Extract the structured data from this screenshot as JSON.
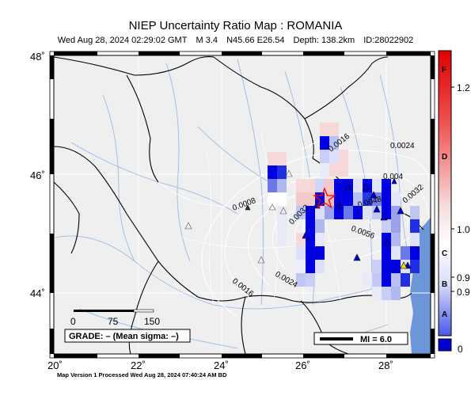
{
  "header": {
    "title": "NIEP Uncertainty Ratio Map : ROMANIA",
    "datetime": "Wed Aug 28, 2024 02:29:02 GMT",
    "magnitude": "M 3.4",
    "location": "N45.66 E26.54",
    "depth": "Depth: 138.2km",
    "event_id": "ID:28022902"
  },
  "axes": {
    "lat_labels": [
      "48˚",
      "46˚",
      "44˚"
    ],
    "lon_labels": [
      "20˚",
      "22˚",
      "24˚",
      "26˚",
      "28˚"
    ]
  },
  "contours": [
    "0.0016",
    "0.0024",
    "0.004",
    "0.0008",
    "0.0032",
    "0.0048",
    "0.0056",
    "0.0032",
    "0.0024",
    "0.0016",
    "0.0032"
  ],
  "scale_bar": {
    "labels": [
      "0",
      "75",
      "150"
    ]
  },
  "grade": "GRADE: – (Mean sigma: –)",
  "mi_legend": "MI = 6.0",
  "colorbar": {
    "letters": [
      "F",
      "D",
      "C",
      "B",
      "A"
    ],
    "values": [
      "1.2",
      "1.0",
      "0.9",
      "0.9",
      "0"
    ]
  },
  "footer": "Map Version 1 Processed Wed Aug 28, 2024 07:40:24 AM BD",
  "colors": {
    "land": "#efefef",
    "sea": "#6d96d8",
    "blue_cell": "#0000e0",
    "star": "#ff0000",
    "rivers": "#8fb4e6"
  }
}
